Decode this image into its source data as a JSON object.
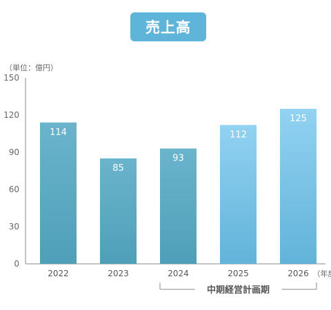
{
  "chart_data": {
    "type": "bar",
    "title": "売上高",
    "unit_label": "（単位：億円）",
    "categories": [
      "2022",
      "2023",
      "2024",
      "2025",
      "2026"
    ],
    "values": [
      114,
      85,
      93,
      112,
      125
    ],
    "ylim": [
      0,
      150
    ],
    "yticks": [
      0,
      30,
      60,
      90,
      120,
      150
    ],
    "x_suffix": "（年度）",
    "bracket_label": "中期経営計画期",
    "bracket_range": [
      "2024",
      "2026"
    ],
    "grid": false,
    "colors": {
      "actual_top": "#6ab4cc",
      "actual_bottom": "#4f9fb9",
      "plan_top": "#92d2f2",
      "plan_bottom": "#62b3da",
      "axis": "#888888"
    }
  }
}
